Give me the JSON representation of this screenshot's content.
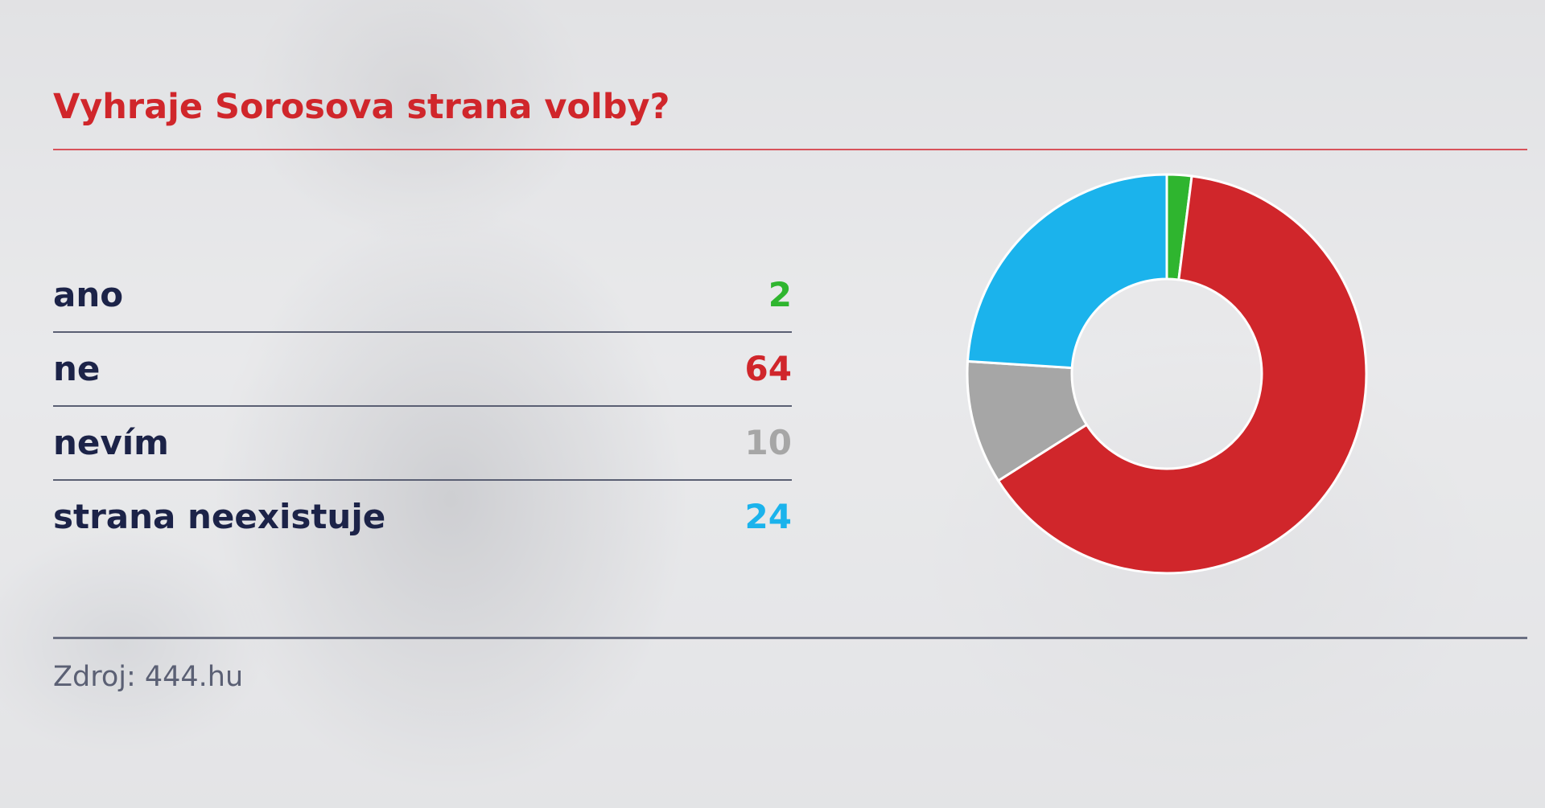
{
  "title": "Vyhraje Sorosova strana volby?",
  "source": "Zdroj: 444.hu",
  "colors": {
    "title": "#d0262b",
    "label": "#1c2348",
    "ano": "#2fb52f",
    "ne": "#d0262b",
    "nevim": "#a6a6a6",
    "strana_neexistuje": "#1bb3ec"
  },
  "chart_data": {
    "type": "pie",
    "variant": "donut",
    "title": "Vyhraje Sorosova strana volby?",
    "categories": [
      "ano",
      "ne",
      "nevím",
      "strana neexistuje"
    ],
    "values": [
      2,
      64,
      10,
      24
    ],
    "colors": [
      "#2fb52f",
      "#d0262b",
      "#a6a6a6",
      "#1bb3ec"
    ],
    "start": "top",
    "direction": "clockwise",
    "legend": "left"
  }
}
